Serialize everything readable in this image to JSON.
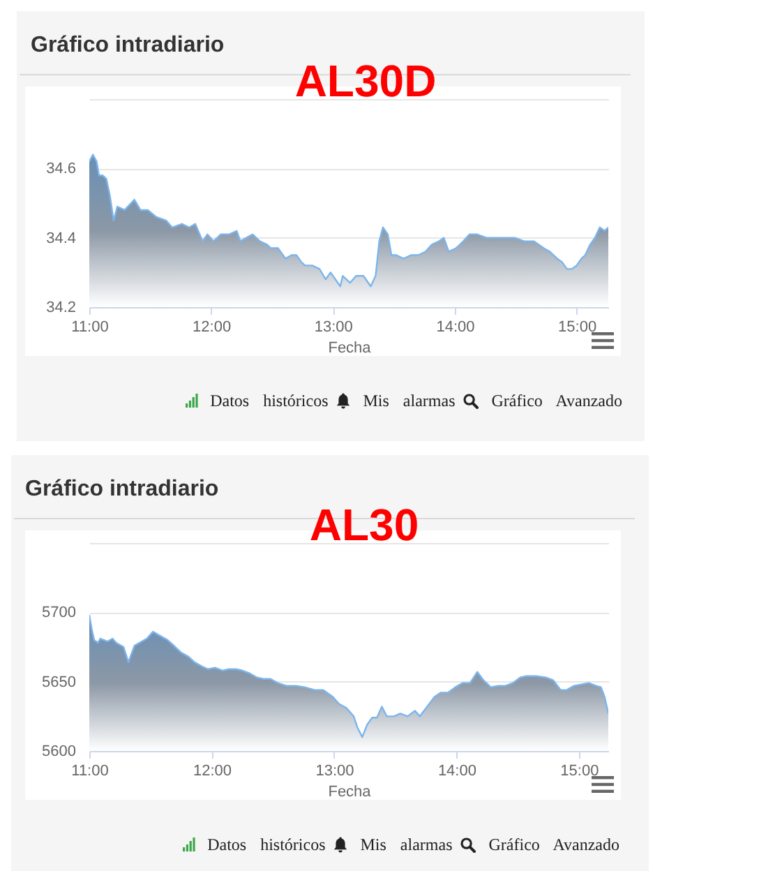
{
  "chart_data": [
    {
      "type": "area",
      "title": "Gráfico intradiario",
      "subtitle": "AL30D",
      "xlabel": "Fecha",
      "color": "#7cb5ec",
      "grid": "y",
      "x": [
        11.0,
        11.03,
        11.06,
        11.08,
        11.11,
        11.14,
        11.17,
        11.2,
        11.23,
        11.29,
        11.37,
        11.42,
        11.48,
        11.55,
        11.63,
        11.68,
        11.76,
        11.82,
        11.87,
        11.93,
        11.97,
        12.02,
        12.08,
        12.15,
        12.21,
        12.24,
        12.29,
        12.34,
        12.4,
        12.46,
        12.49,
        12.55,
        12.61,
        12.66,
        12.7,
        12.74,
        12.77,
        12.83,
        12.89,
        12.94,
        12.98,
        13.02,
        13.06,
        13.08,
        13.14,
        13.19,
        13.25,
        13.31,
        13.35,
        13.38,
        13.41,
        13.45,
        13.48,
        13.52,
        13.58,
        13.64,
        13.7,
        13.76,
        13.81,
        13.87,
        13.91,
        13.95,
        14.01,
        14.07,
        14.12,
        14.18,
        14.26,
        14.34,
        14.42,
        14.49,
        14.57,
        14.65,
        14.73,
        14.78,
        14.84,
        14.88,
        14.92,
        14.96,
        15.0,
        15.04,
        15.07,
        15.11,
        15.15,
        15.19,
        15.23,
        15.26
      ],
      "values": [
        34.62,
        34.64,
        34.62,
        34.58,
        34.58,
        34.57,
        34.52,
        34.45,
        34.49,
        34.48,
        34.51,
        34.48,
        34.48,
        34.46,
        34.45,
        34.43,
        34.44,
        34.43,
        34.44,
        34.39,
        34.41,
        34.39,
        34.41,
        34.41,
        34.42,
        34.39,
        34.4,
        34.41,
        34.39,
        34.38,
        34.37,
        34.37,
        34.34,
        34.35,
        34.35,
        34.33,
        34.32,
        34.32,
        34.31,
        34.28,
        34.3,
        34.28,
        34.26,
        34.29,
        34.27,
        34.29,
        34.29,
        34.26,
        34.29,
        34.39,
        34.43,
        34.41,
        34.35,
        34.35,
        34.34,
        34.35,
        34.35,
        34.36,
        34.38,
        34.39,
        34.4,
        34.36,
        34.37,
        34.39,
        34.41,
        34.41,
        34.4,
        34.4,
        34.4,
        34.4,
        34.39,
        34.39,
        34.37,
        34.36,
        34.34,
        34.33,
        34.31,
        34.31,
        34.32,
        34.34,
        34.35,
        34.38,
        34.4,
        34.43,
        34.42,
        34.43
      ],
      "xlim": [
        11,
        15.26
      ],
      "xticks": [
        {
          "value": 11,
          "label": "11:00"
        },
        {
          "value": 12,
          "label": "12:00"
        },
        {
          "value": 13,
          "label": "13:00"
        },
        {
          "value": 14,
          "label": "14:00"
        },
        {
          "value": 15,
          "label": "15:00"
        }
      ],
      "ylim": [
        34.2,
        34.8
      ],
      "yticks": [
        34.2,
        34.4,
        34.6,
        {
          "value": 34.8,
          "label": null
        }
      ],
      "annotations": [
        "Datos históricos",
        "Mis alarmas",
        "Gráfico Avanzado"
      ]
    },
    {
      "type": "area",
      "title": "Gráfico intradiario",
      "subtitle": "AL30",
      "xlabel": "Fecha",
      "color": "#7cb5ec",
      "grid": "y",
      "x": [
        11.0,
        11.02,
        11.04,
        11.07,
        11.09,
        11.15,
        11.19,
        11.22,
        11.28,
        11.32,
        11.34,
        11.37,
        11.41,
        11.47,
        11.52,
        11.58,
        11.64,
        11.69,
        11.75,
        11.81,
        11.86,
        11.92,
        11.97,
        12.03,
        12.09,
        12.14,
        12.2,
        12.25,
        12.31,
        12.37,
        12.42,
        12.48,
        12.54,
        12.61,
        12.69,
        12.76,
        12.84,
        12.91,
        12.99,
        13.04,
        13.1,
        13.16,
        13.19,
        13.23,
        13.27,
        13.31,
        13.35,
        13.39,
        13.43,
        13.49,
        13.54,
        13.6,
        13.66,
        13.7,
        13.76,
        13.82,
        13.87,
        13.93,
        13.99,
        14.05,
        14.11,
        14.17,
        14.22,
        14.28,
        14.34,
        14.4,
        14.46,
        14.52,
        14.57,
        14.65,
        14.73,
        14.79,
        14.85,
        14.9,
        14.96,
        15.02,
        15.08,
        15.14,
        15.18,
        15.21,
        15.24
      ],
      "values": [
        5698,
        5688,
        5680,
        5678,
        5681,
        5679,
        5681,
        5678,
        5675,
        5664,
        5669,
        5676,
        5678,
        5681,
        5686,
        5683,
        5680,
        5676,
        5671,
        5668,
        5664,
        5661,
        5659,
        5660,
        5658,
        5659,
        5659,
        5658,
        5656,
        5653,
        5652,
        5652,
        5649,
        5647,
        5647,
        5646,
        5644,
        5644,
        5639,
        5634,
        5631,
        5625,
        5617,
        5610,
        5619,
        5624,
        5624,
        5632,
        5625,
        5625,
        5627,
        5625,
        5629,
        5625,
        5632,
        5639,
        5642,
        5642,
        5646,
        5649,
        5649,
        5657,
        5651,
        5646,
        5647,
        5647,
        5649,
        5653,
        5654,
        5654,
        5653,
        5651,
        5644,
        5644,
        5647,
        5648,
        5649,
        5647,
        5646,
        5639,
        5627
      ],
      "xlim": [
        11,
        15.24
      ],
      "xticks": [
        {
          "value": 11,
          "label": "11:00"
        },
        {
          "value": 12,
          "label": "12:00"
        },
        {
          "value": 13,
          "label": "13:00"
        },
        {
          "value": 14,
          "label": "14:00"
        },
        {
          "value": 15,
          "label": "15:00"
        }
      ],
      "ylim": [
        5600,
        5750
      ],
      "yticks": [
        5600,
        5650,
        5700,
        {
          "value": 5750,
          "label": null
        }
      ],
      "annotations": [
        "Datos históricos",
        "Mis alarmas",
        "Gráfico Avanzado"
      ]
    }
  ]
}
